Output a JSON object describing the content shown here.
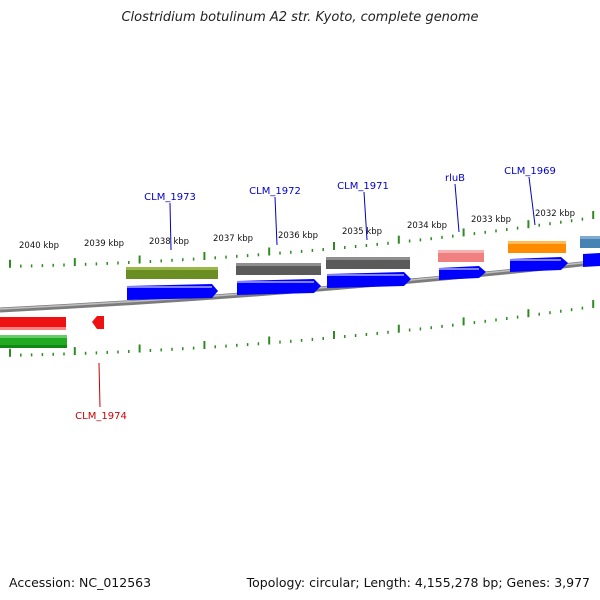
{
  "title": "Clostridium botulinum A2 str. Kyoto, complete genome",
  "footer": {
    "accession": "Accession: NC_012563",
    "stats": "Topology: circular; Length: 4,155,278 bp; Genes: 3,977"
  },
  "colors": {
    "backbone": "#8a8a8a",
    "tick": "#2e8b22",
    "cds": "#0000ff",
    "label_forward": "#0000cc",
    "label_reverse": "#cc0000"
  },
  "scale_labels": [
    "2040 kbp",
    "2039 kbp",
    "2038 kbp",
    "2037 kbp",
    "2036 kbp",
    "2035 kbp",
    "2034 kbp",
    "2033 kbp",
    "2032 kbp"
  ],
  "gene_labels": [
    {
      "text": "CLM_1973",
      "strand": "forward"
    },
    {
      "text": "CLM_1972",
      "strand": "forward"
    },
    {
      "text": "CLM_1971",
      "strand": "forward"
    },
    {
      "text": "rluB",
      "strand": "forward"
    },
    {
      "text": "CLM_1969",
      "strand": "forward"
    },
    {
      "text": "CLM_1974",
      "strand": "reverse"
    }
  ],
  "feature_colors": [
    "#6b8e23",
    "#5a5a5a",
    "#5a5a5a",
    "#f08080",
    "#ff8c00",
    "#4682b4",
    "#ee1111",
    "#22aa22"
  ]
}
